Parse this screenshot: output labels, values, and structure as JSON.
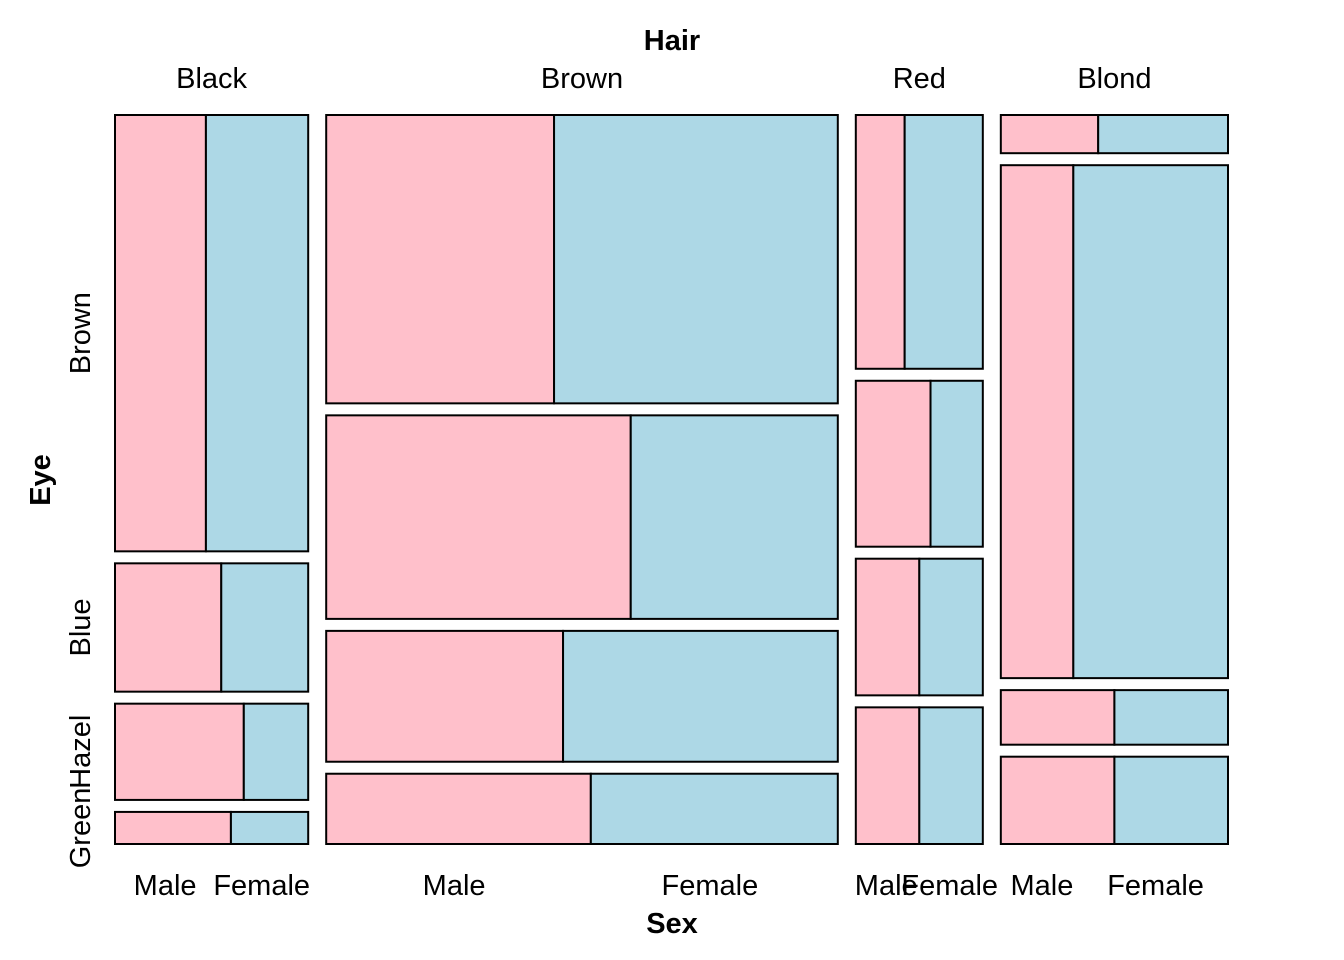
{
  "chart_data": {
    "type": "mosaic",
    "title": "",
    "x_title": "Hair",
    "y_title": "Eye",
    "sex_title": "Sex",
    "hair": [
      "Black",
      "Brown",
      "Red",
      "Blond"
    ],
    "eye": [
      "Brown",
      "Blue",
      "Hazel",
      "Green"
    ],
    "sex": [
      "Male",
      "Female"
    ],
    "counts": {
      "Black": {
        "Brown": [
          32,
          36
        ],
        "Blue": [
          11,
          9
        ],
        "Hazel": [
          10,
          5
        ],
        "Green": [
          3,
          2
        ]
      },
      "Brown": {
        "Brown": [
          53,
          66
        ],
        "Blue": [
          50,
          34
        ],
        "Hazel": [
          25,
          29
        ],
        "Green": [
          15,
          14
        ]
      },
      "Red": {
        "Brown": [
          10,
          16
        ],
        "Blue": [
          10,
          7
        ],
        "Hazel": [
          7,
          7
        ],
        "Green": [
          7,
          7
        ]
      },
      "Blond": {
        "Brown": [
          3,
          4
        ],
        "Blue": [
          30,
          64
        ],
        "Hazel": [
          5,
          5
        ],
        "Green": [
          8,
          8
        ]
      }
    },
    "colors": {
      "Male": "#ffc0cb",
      "Female": "#add8e6",
      "stroke": "#000000"
    },
    "grid": false,
    "legend": "none"
  }
}
